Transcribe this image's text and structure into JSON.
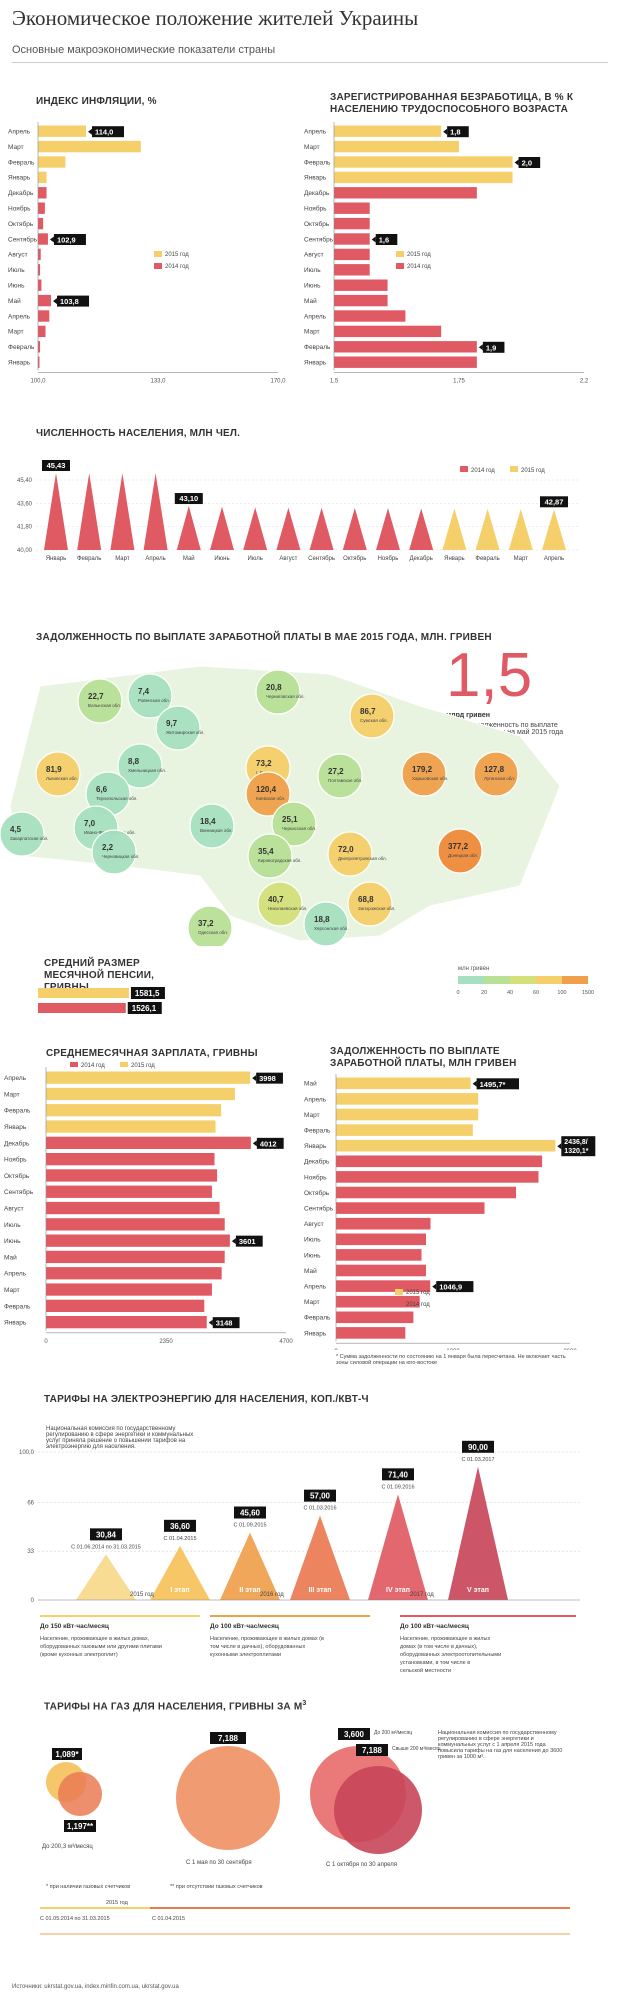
{
  "header": {
    "title": "Экономическое положение жителей Украины",
    "subtitle": "Основные макроэкономические показатели страны"
  },
  "colors": {
    "y2015": "#f5cf6a",
    "y2014": "#e05a63",
    "dark": "#111111"
  },
  "chart_data": [
    {
      "id": "inflation",
      "type": "bar",
      "title": "ИНДЕКС ИНФЛЯЦИИ, %",
      "categories": [
        "Апрель",
        "Март",
        "Февраль",
        "Январь",
        "Декабрь",
        "Ноябрь",
        "Октябрь",
        "Сентябрь",
        "Август",
        "Июль",
        "Июнь",
        "Май",
        "Апрель",
        "Март",
        "Февраль",
        "Январь"
      ],
      "years": [
        "2015",
        "2015",
        "2015",
        "2015",
        "2014",
        "2014",
        "2014",
        "2014",
        "2014",
        "2014",
        "2014",
        "2014",
        "2014",
        "2014",
        "2014",
        "2014"
      ],
      "values": [
        114.0,
        130.0,
        108.0,
        102.5,
        102.5,
        102.0,
        101.5,
        102.9,
        100.8,
        100.6,
        101.0,
        103.8,
        103.3,
        102.2,
        100.6,
        100.2
      ],
      "callouts": [
        {
          "index": 0,
          "text": "114,0"
        },
        {
          "index": 7,
          "text": "102,9"
        },
        {
          "index": 11,
          "text": "103,8"
        }
      ],
      "ticks": [
        "100,0",
        "133,0",
        "170,0"
      ],
      "xlim": [
        100,
        170
      ],
      "legend": [
        "2015 год",
        "2014 год"
      ]
    },
    {
      "id": "unemployment",
      "type": "bar",
      "title": "ЗАРЕГИСТРИРОВАННАЯ БЕЗРАБОТИЦА, В % К НАСЕЛЕНИЮ ТРУДОСПОСОБНОГО ВОЗРАСТА",
      "categories": [
        "Апрель",
        "Март",
        "Февраль",
        "Январь",
        "Декабрь",
        "Ноябрь",
        "Октябрь",
        "Сентябрь",
        "Август",
        "Июль",
        "Июнь",
        "Май",
        "Апрель",
        "Март",
        "Февраль",
        "Январь"
      ],
      "years": [
        "2015",
        "2015",
        "2015",
        "2015",
        "2014",
        "2014",
        "2014",
        "2014",
        "2014",
        "2014",
        "2014",
        "2014",
        "2014",
        "2014",
        "2014",
        "2014"
      ],
      "values": [
        1.8,
        1.85,
        2.0,
        2.0,
        1.9,
        1.6,
        1.6,
        1.6,
        1.6,
        1.6,
        1.65,
        1.65,
        1.7,
        1.8,
        1.9,
        1.9
      ],
      "callouts": [
        {
          "index": 0,
          "text": "1,8"
        },
        {
          "index": 2,
          "text": "2,0"
        },
        {
          "index": 7,
          "text": "1,6"
        },
        {
          "index": 14,
          "text": "1,9"
        }
      ],
      "ticks": [
        "1,5",
        "1,75",
        "2,2"
      ],
      "xlim": [
        1.5,
        2.2
      ],
      "legend": [
        "2015 год",
        "2014 год"
      ]
    },
    {
      "id": "population",
      "type": "bar",
      "title": "ЧИСЛЕННОСТЬ НАСЕЛЕНИЯ, МЛН ЧЕЛ.",
      "categories": [
        "Январь",
        "Февраль",
        "Март",
        "Апрель",
        "Май",
        "Июнь",
        "Июль",
        "Август",
        "Сентябрь",
        "Октябрь",
        "Ноябрь",
        "Декабрь",
        "Январь",
        "Февраль",
        "Март",
        "Апрель"
      ],
      "years": [
        "2014",
        "2014",
        "2014",
        "2014",
        "2014",
        "2014",
        "2014",
        "2014",
        "2014",
        "2014",
        "2014",
        "2014",
        "2015",
        "2015",
        "2015",
        "2015"
      ],
      "values": [
        45.43,
        45.42,
        45.41,
        45.4,
        43.1,
        43.05,
        43.0,
        42.98,
        42.97,
        42.96,
        42.95,
        42.93,
        42.93,
        42.9,
        42.88,
        42.87
      ],
      "callouts": [
        {
          "index": 0,
          "text": "45,43"
        },
        {
          "index": 4,
          "text": "43,10"
        },
        {
          "index": 15,
          "text": "42,87"
        }
      ],
      "ticks": [
        "45,40",
        "43,60",
        "41,80",
        "40,00"
      ],
      "ylim": [
        40,
        45.5
      ],
      "legend": [
        "2014 год",
        "2015 год"
      ]
    },
    {
      "id": "pension",
      "type": "bar",
      "title": "СРЕДНИЙ РАЗМЕР МЕСЯЧНОЙ ПЕНСИИ, ГРИВНЫ",
      "categories": [
        "2015",
        "2014"
      ],
      "values": [
        1581.5,
        1526.1
      ],
      "labels": [
        "1581,5",
        "1526,1"
      ]
    },
    {
      "id": "salary",
      "type": "bar",
      "title": "СРЕДНЕМЕСЯЧНАЯ ЗАРПЛАТА, ГРИВНЫ",
      "categories": [
        "Апрель",
        "Март",
        "Февраль",
        "Январь",
        "Декабрь",
        "Ноябрь",
        "Октябрь",
        "Сентябрь",
        "Август",
        "Июль",
        "Июнь",
        "Май",
        "Апрель",
        "Март",
        "Февраль",
        "Январь"
      ],
      "years": [
        "2015",
        "2015",
        "2015",
        "2015",
        "2014",
        "2014",
        "2014",
        "2014",
        "2014",
        "2014",
        "2014",
        "2014",
        "2014",
        "2014",
        "2014",
        "2014"
      ],
      "values": [
        3998,
        3700,
        3430,
        3320,
        4012,
        3300,
        3350,
        3250,
        3400,
        3500,
        3601,
        3500,
        3440,
        3250,
        3100,
        3148
      ],
      "callouts": [
        {
          "index": 0,
          "text": "3998"
        },
        {
          "index": 4,
          "text": "4012"
        },
        {
          "index": 10,
          "text": "3601"
        },
        {
          "index": 15,
          "text": "3148"
        }
      ],
      "ticks": [
        "0",
        "2350",
        "4700"
      ],
      "xlim": [
        0,
        4700
      ],
      "legend": [
        "2014 год",
        "2015 год"
      ]
    },
    {
      "id": "arrears",
      "type": "bar",
      "title": "ЗАДОЛЖЕННОСТЬ ПО ВЫПЛАТЕ ЗАРАБОТНОЙ ПЛАТЫ, МЛН ГРИВЕН",
      "categories": [
        "Май",
        "Апрель",
        "Март",
        "Февраль",
        "Январь",
        "Декабрь",
        "Ноябрь",
        "Октябрь",
        "Сентябрь",
        "Август",
        "Июль",
        "Июнь",
        "Май",
        "Апрель",
        "Март",
        "Февраль",
        "Январь"
      ],
      "years": [
        "2015",
        "2015",
        "2015",
        "2015",
        "2015",
        "2014",
        "2014",
        "2014",
        "2014",
        "2014",
        "2014",
        "2014",
        "2014",
        "2014",
        "2014",
        "2014",
        "2014"
      ],
      "values": [
        1495.7,
        1580,
        1580,
        1520,
        2436.8,
        2290,
        2250,
        2000,
        1650,
        1050,
        1000,
        950,
        1000,
        1046.9,
        930,
        860,
        770
      ],
      "callouts": [
        {
          "index": 0,
          "text": "1495,7*"
        },
        {
          "index": 4,
          "text": "2436,8/ 1320,1*"
        },
        {
          "index": 13,
          "text": "1046,9"
        }
      ],
      "ticks": [
        "0",
        "1300",
        "2600"
      ],
      "xlim": [
        0,
        2600
      ],
      "legend": [
        "2015 год",
        "2014 год"
      ],
      "note": "* Сумма задолженности по состоянию на 1 января была пересчитана. Не включает часть зоны силовой операции на юго-востоке"
    },
    {
      "id": "electricity",
      "type": "area",
      "title": "ТАРИФЫ НА ЭЛЕКТРОЭНЕРГИЮ ДЛЯ НАСЕЛЕНИЯ, КОП./КВТ-Ч",
      "categories": [
        "",
        "I этап",
        "II этап",
        "III этап",
        "IV этап",
        "V этап"
      ],
      "values": [
        30.84,
        36.6,
        45.6,
        57.0,
        71.4,
        90.0
      ],
      "labels": [
        "30,84",
        "36,60",
        "45,60",
        "57,00",
        "71,40",
        "90,00"
      ],
      "dates": [
        "С 01.06.2014 по 31.03.2015",
        "С 01.04.2015",
        "С 01.09.2015",
        "С 01.03.2016",
        "С 01.09.2016",
        "С 01.03.2017"
      ],
      "ticks": [
        "100,0",
        "66",
        "33",
        "0"
      ],
      "ylim": [
        0,
        100
      ]
    }
  ],
  "map": {
    "title": "ЗАДОЛЖЕННОСТЬ ПО ВЫПЛАТЕ ЗАРАБОТНОЙ ПЛАТЫ В МАЕ 2015 ГОДА, МЛН. ГРИВЕН",
    "big_value": "1,5",
    "big_unit": "млрд гривен",
    "big_caption": "общая задолженность по выплате заработной платы на май 2015 года",
    "legend_unit": "млн гривен",
    "legend_ticks": [
      "0",
      "20",
      "40",
      "60",
      "100",
      "1500"
    ],
    "regions": [
      {
        "value": "22,7",
        "name": "Волынская обл."
      },
      {
        "value": "7,4",
        "name": "Ровенская обл."
      },
      {
        "value": "20,8",
        "name": "Черниговская обл."
      },
      {
        "value": "86,7",
        "name": "Сумская обл."
      },
      {
        "value": "9,7",
        "name": "Житомирская обл."
      },
      {
        "value": "73,2",
        "name": "г. Киев"
      },
      {
        "value": "81,9",
        "name": "Львовская обл."
      },
      {
        "value": "8,8",
        "name": "Хмельницкая обл."
      },
      {
        "value": "6,6",
        "name": "Тернопольская обл."
      },
      {
        "value": "120,4",
        "name": "Киевская обл."
      },
      {
        "value": "27,2",
        "name": "Полтавская обл."
      },
      {
        "value": "179,2",
        "name": "Харьковская обл."
      },
      {
        "value": "127,8",
        "name": "Луганская обл."
      },
      {
        "value": "25,1",
        "name": "Черкасская обл."
      },
      {
        "value": "7,0",
        "name": "Ивано-Франковская обл."
      },
      {
        "value": "18,4",
        "name": "Винницкая обл."
      },
      {
        "value": "4,5",
        "name": "Закарпатская обл."
      },
      {
        "value": "2,2",
        "name": "Черновицкая обл."
      },
      {
        "value": "35,4",
        "name": "Кировоградская обл."
      },
      {
        "value": "72,0",
        "name": "Днепропетровская обл."
      },
      {
        "value": "377,2",
        "name": "Донецкая обл."
      },
      {
        "value": "40,7",
        "name": "Николаевская обл."
      },
      {
        "value": "68,8",
        "name": "Запорожская обл."
      },
      {
        "value": "18,8",
        "name": "Херсонская обл."
      },
      {
        "value": "37,2",
        "name": "Одесская обл."
      }
    ]
  },
  "electricity_notes": {
    "tiers": [
      "До 150 кВт·час/месяц",
      "До 100 кВт·час/месяц",
      "До 100 кВт·час/месяц"
    ],
    "tier_texts": [
      "Население, проживающее в жилых домах, оборудованных газовыми или другими плитами (кроме кухонных электроплит)",
      "Население, проживающее в жилых домах (в том числе в дачных), оборудованных кухонными электроплитами",
      "Население, проживающее в жилых домах (в том числе в дачных), оборудованных электроотопительными установками, в том числе в сельской местности"
    ],
    "intro": "Национальная комиссия по государственному регулированию в сфере энергетики и коммунальных услуг приняла решение о повышении тарифов на электроэнергию для населения.",
    "years": [
      "2015 год",
      "2016 год",
      "2017 год"
    ]
  },
  "gas": {
    "title": "ТАРИФЫ НА ГАЗ ДЛЯ НАСЕЛЕНИЯ, ГРИВНЫ ЗА М",
    "title_sup": "3",
    "c1_top": "1,089*",
    "c1_bottom": "1,197**",
    "c1_note": "До 200,3 м³/месяц",
    "c2": "7,188",
    "c2_note": "С 1 мая по 30 сентября",
    "c3_a": "3,600",
    "c3_a_note": "До 200 м³/месяц",
    "c3_b": "7,188",
    "c3_b_note": "Свыше 200 м³/месяц",
    "c3_note": "С 1 октября по 30 апреля",
    "foot1": "* при наличии газовых счетчиков",
    "foot2": "** при отсутствии газовых счетчиков",
    "periods": [
      "2015 год",
      "С 01.05.2014 по 31.03.2015",
      "С 01.04.2015"
    ],
    "text": "Национальная комиссия по государственному регулированию в сфере энергетики и коммунальных услуг с 1 апреля 2015 года повысила тарифы на газ для населения до 3600 гривен за 1000 м³."
  },
  "source": "Источники: ukrstat.gov.ua, index.minfin.com.ua, ukrstat.gov.ua"
}
